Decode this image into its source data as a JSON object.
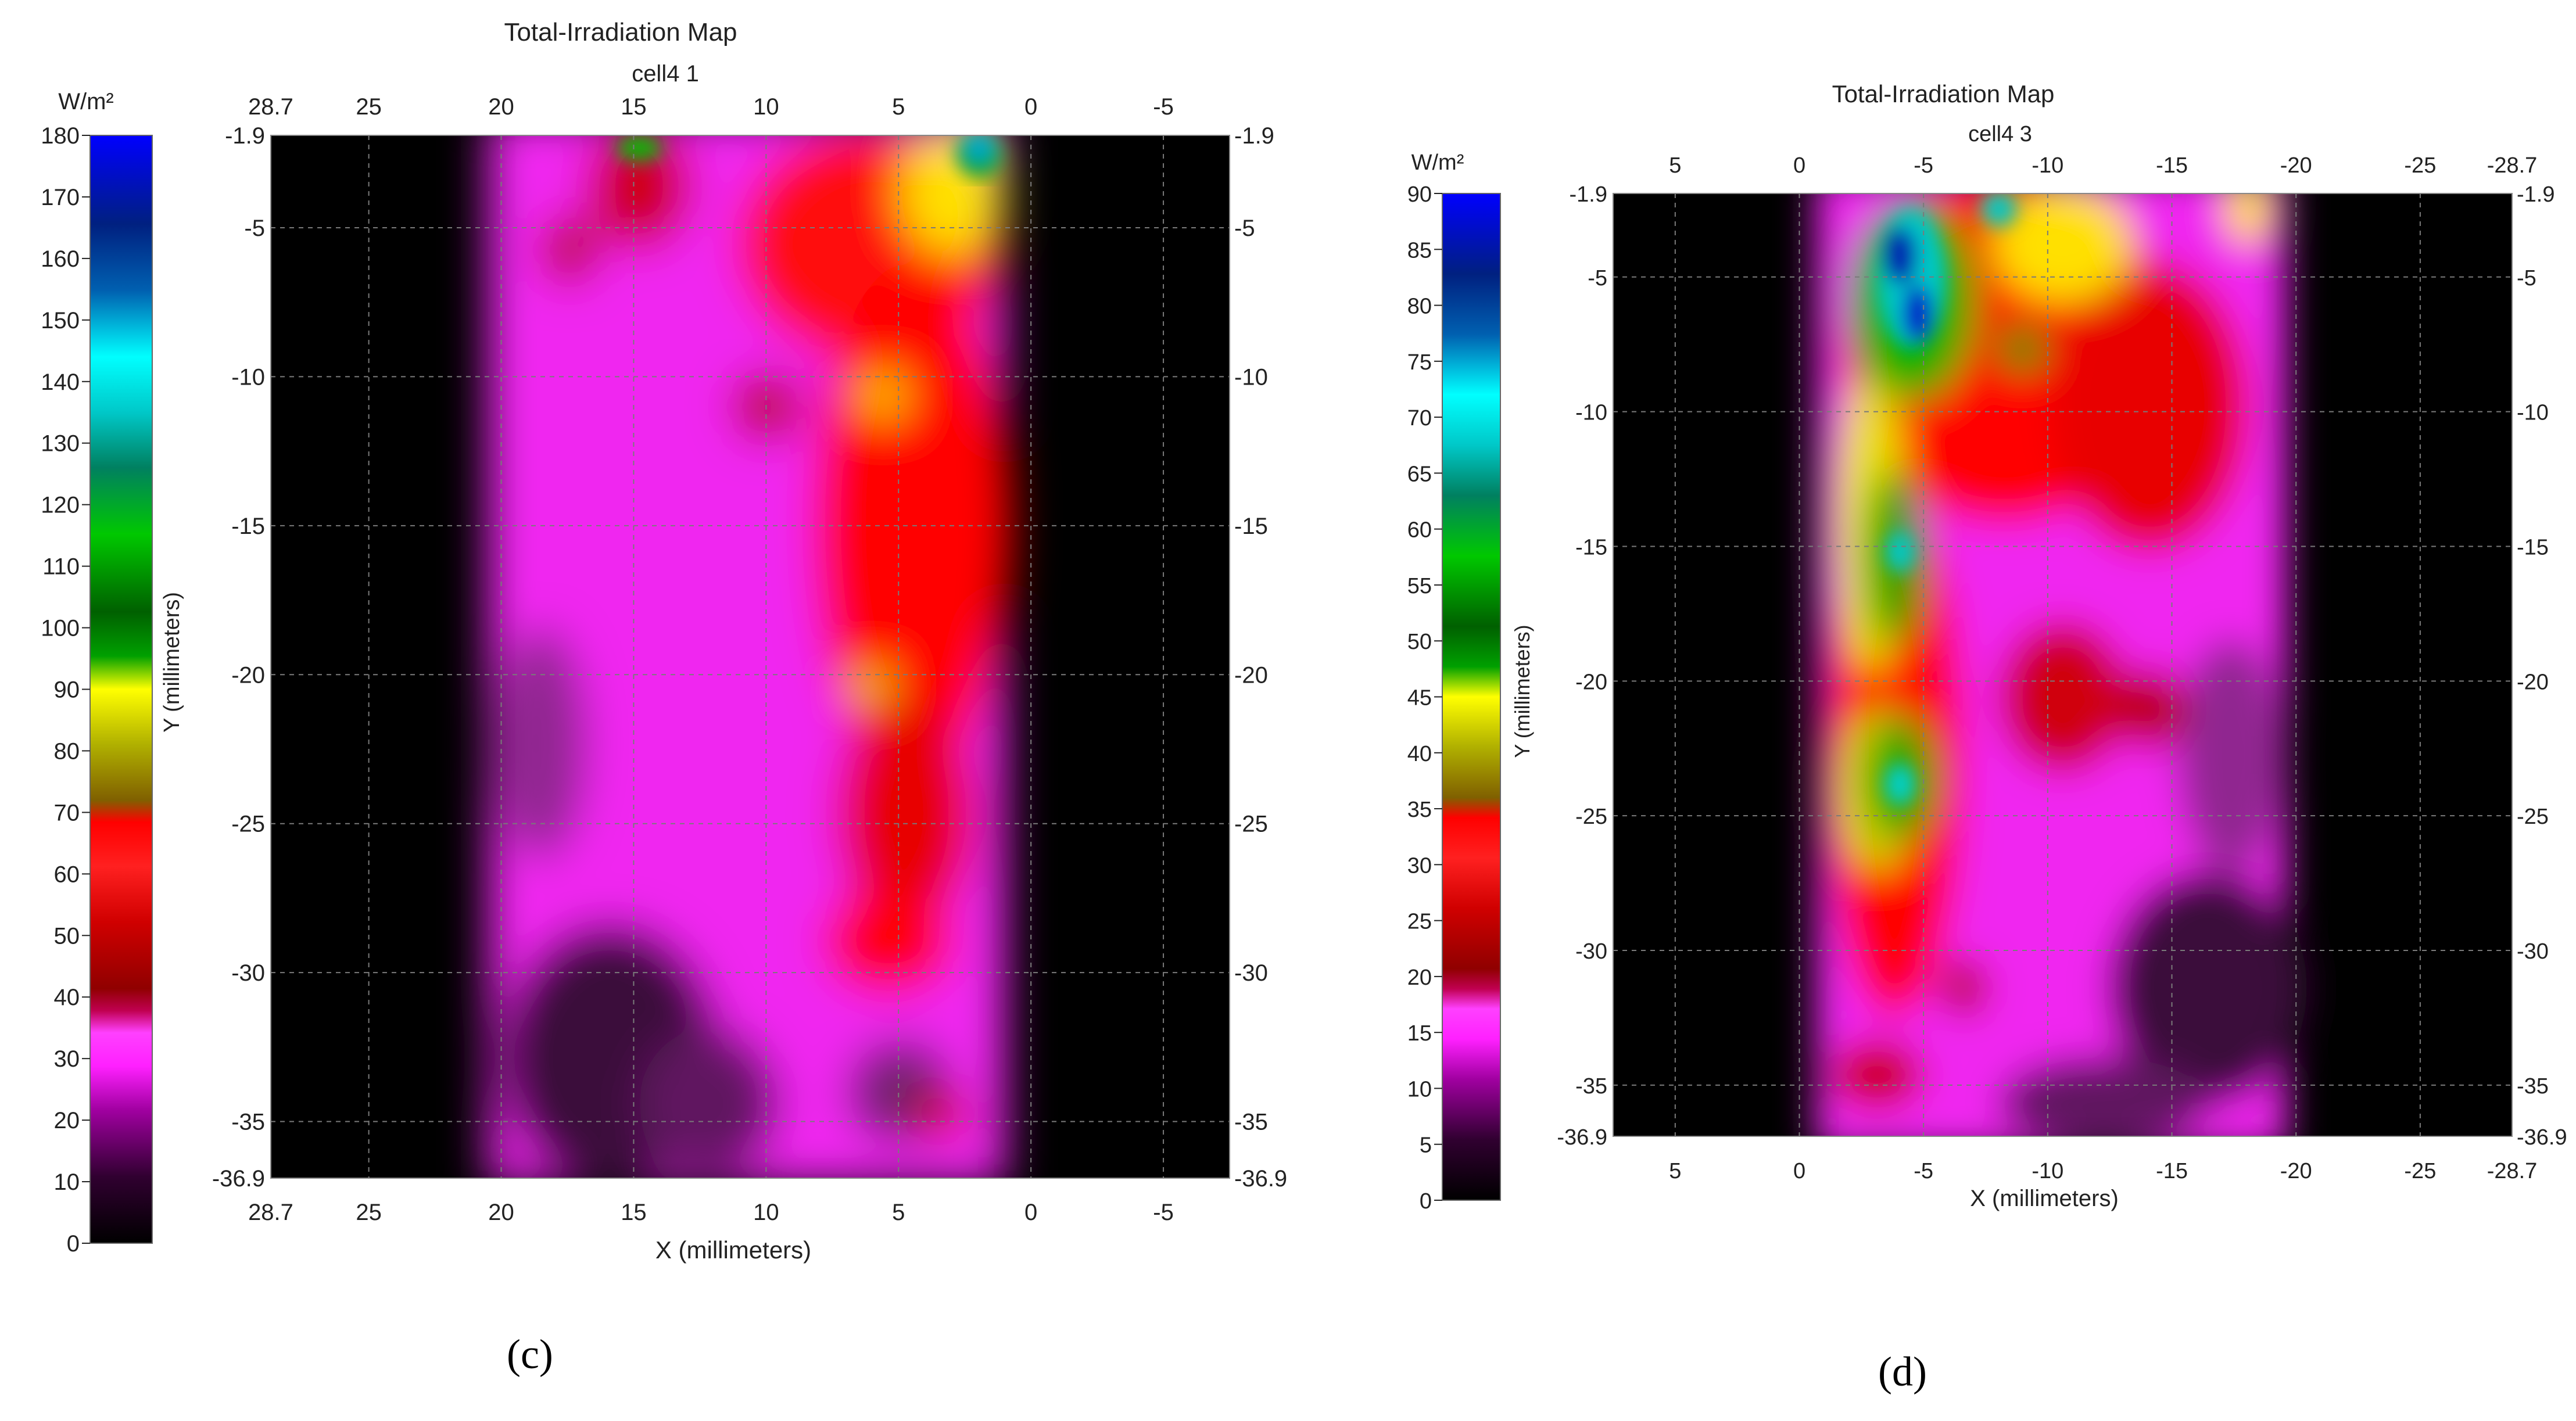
{
  "chart_data": [
    {
      "type": "heatmap",
      "title": "Total-Irradiation Map",
      "subtitle": "cell4 1",
      "xlabel": "X (millimeters)",
      "ylabel": "Y (millimeters)",
      "xlim": [
        28.7,
        -7.5
      ],
      "ylim": [
        -1.9,
        -36.9
      ],
      "x_ticks": [
        "28.7",
        "25",
        "20",
        "15",
        "10",
        "5",
        "0",
        "-5"
      ],
      "y_ticks": [
        "-1.9",
        "-5",
        "-10",
        "-15",
        "-20",
        "-25",
        "-30",
        "-35",
        "-36.9"
      ],
      "colorbar": {
        "unit": "W/m²",
        "min": 0,
        "max": 180,
        "ticks": [
          "0",
          "10",
          "20",
          "30",
          "40",
          "50",
          "60",
          "70",
          "80",
          "90",
          "100",
          "110",
          "120",
          "130",
          "140",
          "150",
          "160",
          "170",
          "180"
        ]
      },
      "grid": true,
      "caption": "(c)"
    },
    {
      "type": "heatmap",
      "title": "Total-Irradiation Map",
      "subtitle": "cell4 3",
      "xlabel": "X (millimeters)",
      "ylabel": "Y (millimeters)",
      "xlim": [
        7.5,
        -28.7
      ],
      "ylim": [
        -1.9,
        -36.9
      ],
      "x_ticks": [
        "5",
        "0",
        "-5",
        "-10",
        "-15",
        "-20",
        "-25",
        "-28.7"
      ],
      "y_ticks": [
        "-1.9",
        "-5",
        "-10",
        "-15",
        "-20",
        "-25",
        "-30",
        "-35",
        "-36.9"
      ],
      "colorbar": {
        "unit": "W/m²",
        "min": 0,
        "max": 90,
        "ticks": [
          "0",
          "5",
          "10",
          "15",
          "20",
          "25",
          "30",
          "35",
          "40",
          "45",
          "50",
          "55",
          "60",
          "65",
          "70",
          "75",
          "80",
          "85",
          "90"
        ]
      },
      "grid": true,
      "caption": "(d)"
    }
  ],
  "colors": {
    "background": "#000000",
    "low": "#ff20ff",
    "mid": "#ff0000",
    "high_mid": "#ffff00",
    "high": "#00c800",
    "peak": "#0000ff"
  }
}
